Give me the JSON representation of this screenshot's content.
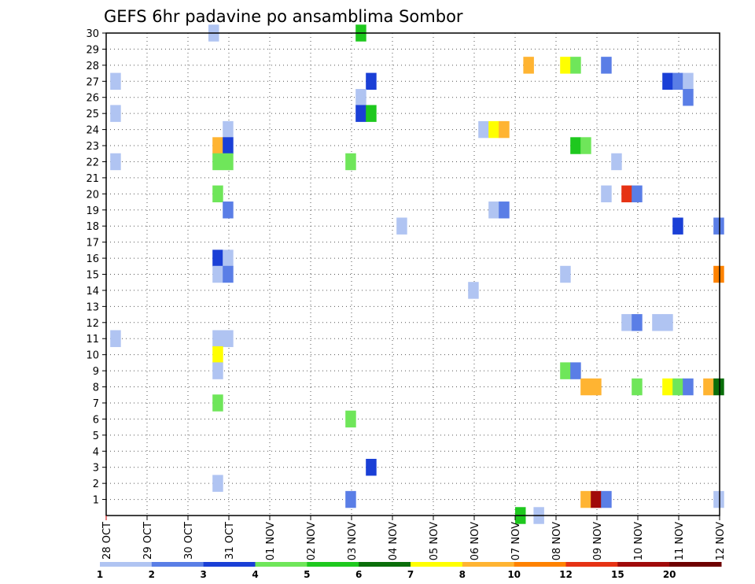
{
  "chart_data": {
    "type": "heatmap",
    "title": "GEFS 6hr padavine po ansamblima Sombor",
    "xlabel": "",
    "ylabel": "",
    "x_tick_labels": [
      "28 OCT",
      "29 OCT",
      "30 OCT",
      "31 OCT",
      "01 NOV",
      "02 NOV",
      "03 NOV",
      "04 NOV",
      "05 NOV",
      "06 NOV",
      "07 NOV",
      "08 NOV",
      "09 NOV",
      "10 NOV",
      "11 NOV",
      "12 NOV"
    ],
    "xlim_days": [
      0,
      15
    ],
    "y_tick_labels": [
      "1",
      "2",
      "3",
      "4",
      "5",
      "6",
      "7",
      "8",
      "9",
      "10",
      "11",
      "12",
      "13",
      "14",
      "15",
      "16",
      "17",
      "18",
      "19",
      "20",
      "21",
      "22",
      "23",
      "24",
      "25",
      "26",
      "27",
      "28",
      "29",
      "30"
    ],
    "ylim_members": [
      0,
      30
    ],
    "grid": true,
    "colorbar": {
      "levels": [
        "1",
        "2",
        "3",
        "4",
        "5",
        "6",
        "7",
        "8",
        "10",
        "12",
        "15",
        "20"
      ],
      "colors": [
        "#b0c4f2",
        "#5a7ee6",
        "#1a3fd6",
        "#6fe65a",
        "#1ec81e",
        "#0a6e0a",
        "#ffff00",
        "#ffb432",
        "#ff8200",
        "#e63214",
        "#a00a0a",
        "#6e0000"
      ]
    },
    "cells": [
      {
        "m": 30,
        "x": 2.5,
        "c": 0
      },
      {
        "m": 30,
        "x": 6.1,
        "c": 4
      },
      {
        "m": 28,
        "x": 10.2,
        "c": 7
      },
      {
        "m": 28,
        "x": 11.1,
        "c": 6
      },
      {
        "m": 28,
        "x": 11.35,
        "c": 3
      },
      {
        "m": 28,
        "x": 12.1,
        "c": 1
      },
      {
        "m": 27,
        "x": 0.1,
        "c": 0
      },
      {
        "m": 27,
        "x": 6.35,
        "c": 2
      },
      {
        "m": 27,
        "x": 13.6,
        "c": 2
      },
      {
        "m": 27,
        "x": 13.85,
        "c": 1
      },
      {
        "m": 27,
        "x": 14.1,
        "c": 0
      },
      {
        "m": 26,
        "x": 6.1,
        "c": 0
      },
      {
        "m": 26,
        "x": 14.1,
        "c": 1
      },
      {
        "m": 25,
        "x": 0.1,
        "c": 0
      },
      {
        "m": 25,
        "x": 6.1,
        "c": 2
      },
      {
        "m": 25,
        "x": 6.35,
        "c": 4
      },
      {
        "m": 24,
        "x": 2.85,
        "c": 0
      },
      {
        "m": 23,
        "x": 2.6,
        "c": 7
      },
      {
        "m": 23,
        "x": 2.85,
        "c": 2
      },
      {
        "m": 23,
        "x": 11.35,
        "c": 4
      },
      {
        "m": 23,
        "x": 11.6,
        "c": 3
      },
      {
        "m": 24,
        "x": 9.1,
        "c": 0
      },
      {
        "m": 24,
        "x": 9.35,
        "c": 6
      },
      {
        "m": 24,
        "x": 9.6,
        "c": 7
      },
      {
        "m": 22,
        "x": 0.1,
        "c": 0
      },
      {
        "m": 22,
        "x": 2.6,
        "c": 3
      },
      {
        "m": 22,
        "x": 2.85,
        "c": 3
      },
      {
        "m": 22,
        "x": 5.85,
        "c": 3
      },
      {
        "m": 22,
        "x": 12.35,
        "c": 0
      },
      {
        "m": 20,
        "x": 2.6,
        "c": 3
      },
      {
        "m": 20,
        "x": 12.1,
        "c": 0
      },
      {
        "m": 20,
        "x": 12.6,
        "c": 9
      },
      {
        "m": 20,
        "x": 12.85,
        "c": 1
      },
      {
        "m": 19,
        "x": 2.85,
        "c": 1
      },
      {
        "m": 19,
        "x": 9.35,
        "c": 0
      },
      {
        "m": 19,
        "x": 9.6,
        "c": 1
      },
      {
        "m": 18,
        "x": 7.1,
        "c": 0
      },
      {
        "m": 18,
        "x": 13.85,
        "c": 2
      },
      {
        "m": 18,
        "x": 14.85,
        "c": 1
      },
      {
        "m": 16,
        "x": 2.6,
        "c": 2
      },
      {
        "m": 16,
        "x": 2.85,
        "c": 0
      },
      {
        "m": 15,
        "x": 2.6,
        "c": 0
      },
      {
        "m": 15,
        "x": 2.85,
        "c": 1
      },
      {
        "m": 15,
        "x": 11.1,
        "c": 0
      },
      {
        "m": 15,
        "x": 14.85,
        "c": 8
      },
      {
        "m": 14,
        "x": 8.85,
        "c": 0
      },
      {
        "m": 12,
        "x": 12.6,
        "c": 0
      },
      {
        "m": 12,
        "x": 12.85,
        "c": 1
      },
      {
        "m": 12,
        "x": 13.35,
        "c": 0
      },
      {
        "m": 12,
        "x": 13.6,
        "c": 0
      },
      {
        "m": 11,
        "x": 0.1,
        "c": 0
      },
      {
        "m": 11,
        "x": 2.6,
        "c": 0
      },
      {
        "m": 11,
        "x": 2.85,
        "c": 0
      },
      {
        "m": 10,
        "x": 2.6,
        "c": 6
      },
      {
        "m": 9,
        "x": 2.6,
        "c": 0
      },
      {
        "m": 9,
        "x": 11.1,
        "c": 3
      },
      {
        "m": 9,
        "x": 11.35,
        "c": 1
      },
      {
        "m": 8,
        "x": 11.6,
        "c": 7
      },
      {
        "m": 8,
        "x": 11.85,
        "c": 7
      },
      {
        "m": 8,
        "x": 12.85,
        "c": 3
      },
      {
        "m": 8,
        "x": 13.6,
        "c": 6
      },
      {
        "m": 8,
        "x": 13.85,
        "c": 3
      },
      {
        "m": 8,
        "x": 14.1,
        "c": 1
      },
      {
        "m": 8,
        "x": 14.6,
        "c": 7
      },
      {
        "m": 8,
        "x": 14.85,
        "c": 5
      },
      {
        "m": 7,
        "x": 2.6,
        "c": 3
      },
      {
        "m": 6,
        "x": 5.85,
        "c": 3
      },
      {
        "m": 3,
        "x": 6.35,
        "c": 2
      },
      {
        "m": 2,
        "x": 2.6,
        "c": 0
      },
      {
        "m": 1,
        "x": 5.85,
        "c": 1
      },
      {
        "m": 1,
        "x": 11.6,
        "c": 7
      },
      {
        "m": 1,
        "x": 11.85,
        "c": 10
      },
      {
        "m": 1,
        "x": 12.1,
        "c": 1
      },
      {
        "m": 1,
        "x": 14.85,
        "c": 0
      },
      {
        "m": 0,
        "x": 10.0,
        "c": 4
      },
      {
        "m": 0,
        "x": 10.45,
        "c": 0
      }
    ]
  }
}
